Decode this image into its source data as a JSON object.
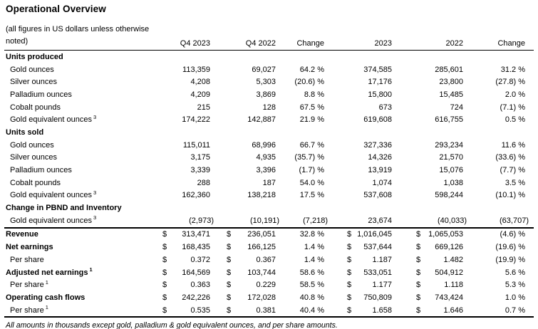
{
  "page": {
    "title": "Operational Overview",
    "footnote": "All amounts in thousands except gold, palladium & gold equivalent ounces, and per share amounts."
  },
  "colors": {
    "text": "#000000",
    "rule": "#000000",
    "background": "#ffffff"
  },
  "table": {
    "note": [
      "(all figures in US dollars unless otherwise",
      "noted)"
    ],
    "currency_symbol": "$",
    "columns": [
      "Q4 2023",
      "Q4 2022",
      "Change",
      "2023",
      "2022",
      "Change"
    ],
    "rows": [
      {
        "style": "section",
        "label": "Units produced",
        "cells": []
      },
      {
        "style": "item",
        "label": "Gold ounces",
        "cells": [
          "113,359",
          "69,027",
          "64.2 %",
          "374,585",
          "285,601",
          "31.2 %"
        ]
      },
      {
        "style": "item",
        "label": "Silver ounces",
        "cells": [
          "4,208",
          "5,303",
          "(20.6) %",
          "17,176",
          "23,800",
          "(27.8) %"
        ]
      },
      {
        "style": "item",
        "label": "Palladium ounces",
        "cells": [
          "4,209",
          "3,869",
          "8.8 %",
          "15,800",
          "15,485",
          "2.0 %"
        ]
      },
      {
        "style": "item",
        "label": "Cobalt pounds",
        "cells": [
          "215",
          "128",
          "67.5 %",
          "673",
          "724",
          "(7.1) %"
        ]
      },
      {
        "style": "item",
        "label": "Gold equivalent ounces",
        "sup": "3",
        "cells": [
          "174,222",
          "142,887",
          "21.9 %",
          "619,608",
          "616,755",
          "0.5 %"
        ]
      },
      {
        "style": "section",
        "label": "Units sold",
        "cells": []
      },
      {
        "style": "item",
        "label": "Gold ounces",
        "cells": [
          "115,011",
          "68,996",
          "66.7 %",
          "327,336",
          "293,234",
          "11.6 %"
        ]
      },
      {
        "style": "item",
        "label": "Silver ounces",
        "cells": [
          "3,175",
          "4,935",
          "(35.7) %",
          "14,326",
          "21,570",
          "(33.6) %"
        ]
      },
      {
        "style": "item",
        "label": "Palladium ounces",
        "cells": [
          "3,339",
          "3,396",
          "(1.7) %",
          "13,919",
          "15,076",
          "(7.7) %"
        ]
      },
      {
        "style": "item",
        "label": "Cobalt pounds",
        "cells": [
          "288",
          "187",
          "54.0 %",
          "1,074",
          "1,038",
          "3.5 %"
        ]
      },
      {
        "style": "item",
        "label": "Gold equivalent ounces",
        "sup": "3",
        "cells": [
          "162,360",
          "138,218",
          "17.5 %",
          "537,608",
          "598,244",
          "(10.1) %"
        ]
      },
      {
        "style": "section",
        "label": "Change in PBND and Inventory",
        "cells": []
      },
      {
        "style": "item",
        "label": "Gold equivalent ounces",
        "sup": "3",
        "cells": [
          "(2,973)",
          "(10,191)",
          "(7,218)",
          "23,674",
          "(40,033)",
          "(63,707)"
        ]
      },
      {
        "style": "bold",
        "label": "Revenue",
        "rule_above": true,
        "dollar": true,
        "cells": [
          "313,471",
          "236,051",
          "32.8 %",
          "1,016,045",
          "1,065,053",
          "(4.6) %"
        ]
      },
      {
        "style": "bold",
        "label": "Net earnings",
        "dollar": true,
        "cells": [
          "168,435",
          "166,125",
          "1.4 %",
          "537,644",
          "669,126",
          "(19.6) %"
        ]
      },
      {
        "style": "item",
        "label": "Per share",
        "dollar": true,
        "cells": [
          "0.372",
          "0.367",
          "1.4 %",
          "1.187",
          "1.482",
          "(19.9) %"
        ]
      },
      {
        "style": "bold",
        "label": "Adjusted net earnings",
        "sup": "1",
        "dollar": true,
        "cells": [
          "164,569",
          "103,744",
          "58.6 %",
          "533,051",
          "504,912",
          "5.6 %"
        ]
      },
      {
        "style": "item",
        "label": "Per share",
        "sup": "1",
        "dollar": true,
        "cells": [
          "0.363",
          "0.229",
          "58.5 %",
          "1.177",
          "1.118",
          "5.3 %"
        ]
      },
      {
        "style": "bold",
        "label": "Operating cash flows",
        "dollar": true,
        "cells": [
          "242,226",
          "172,028",
          "40.8 %",
          "750,809",
          "743,424",
          "1.0 %"
        ]
      },
      {
        "style": "item",
        "label": "Per share",
        "sup": "1",
        "dollar": true,
        "cells": [
          "0.535",
          "0.381",
          "40.4 %",
          "1.658",
          "1.646",
          "0.7 %"
        ]
      }
    ]
  }
}
